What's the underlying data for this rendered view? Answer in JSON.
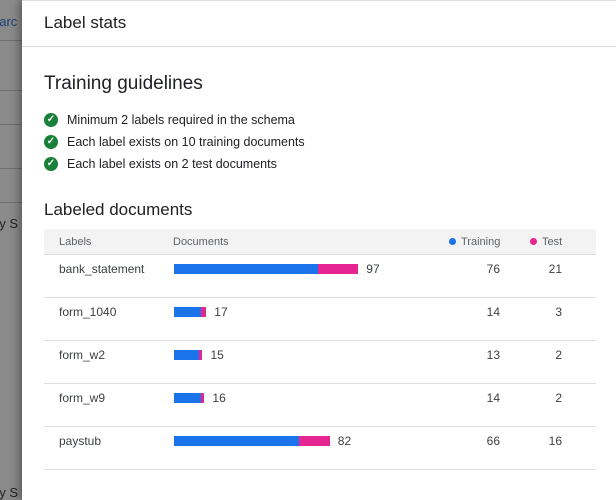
{
  "background": {
    "fragments": [
      "earc",
      "ay S",
      "ay S"
    ]
  },
  "panel": {
    "title": "Label stats"
  },
  "guidelines": {
    "title": "Training guidelines",
    "items": [
      "Minimum 2 labels required in the schema",
      "Each label exists on 10 training documents",
      "Each label exists on 2 test documents"
    ]
  },
  "labeled": {
    "title": "Labeled documents",
    "headers": {
      "labels": "Labels",
      "documents": "Documents",
      "training": "Training",
      "test": "Test"
    },
    "colors": {
      "training": "#1a73e8",
      "test": "#e52592"
    },
    "rows": [
      {
        "label": "bank_statement",
        "total": "97",
        "training": "76",
        "test": "21"
      },
      {
        "label": "form_1040",
        "total": "17",
        "training": "14",
        "test": "3"
      },
      {
        "label": "form_w2",
        "total": "15",
        "training": "13",
        "test": "2"
      },
      {
        "label": "form_w9",
        "total": "16",
        "training": "14",
        "test": "2"
      },
      {
        "label": "paystub",
        "total": "82",
        "training": "66",
        "test": "16"
      }
    ]
  }
}
